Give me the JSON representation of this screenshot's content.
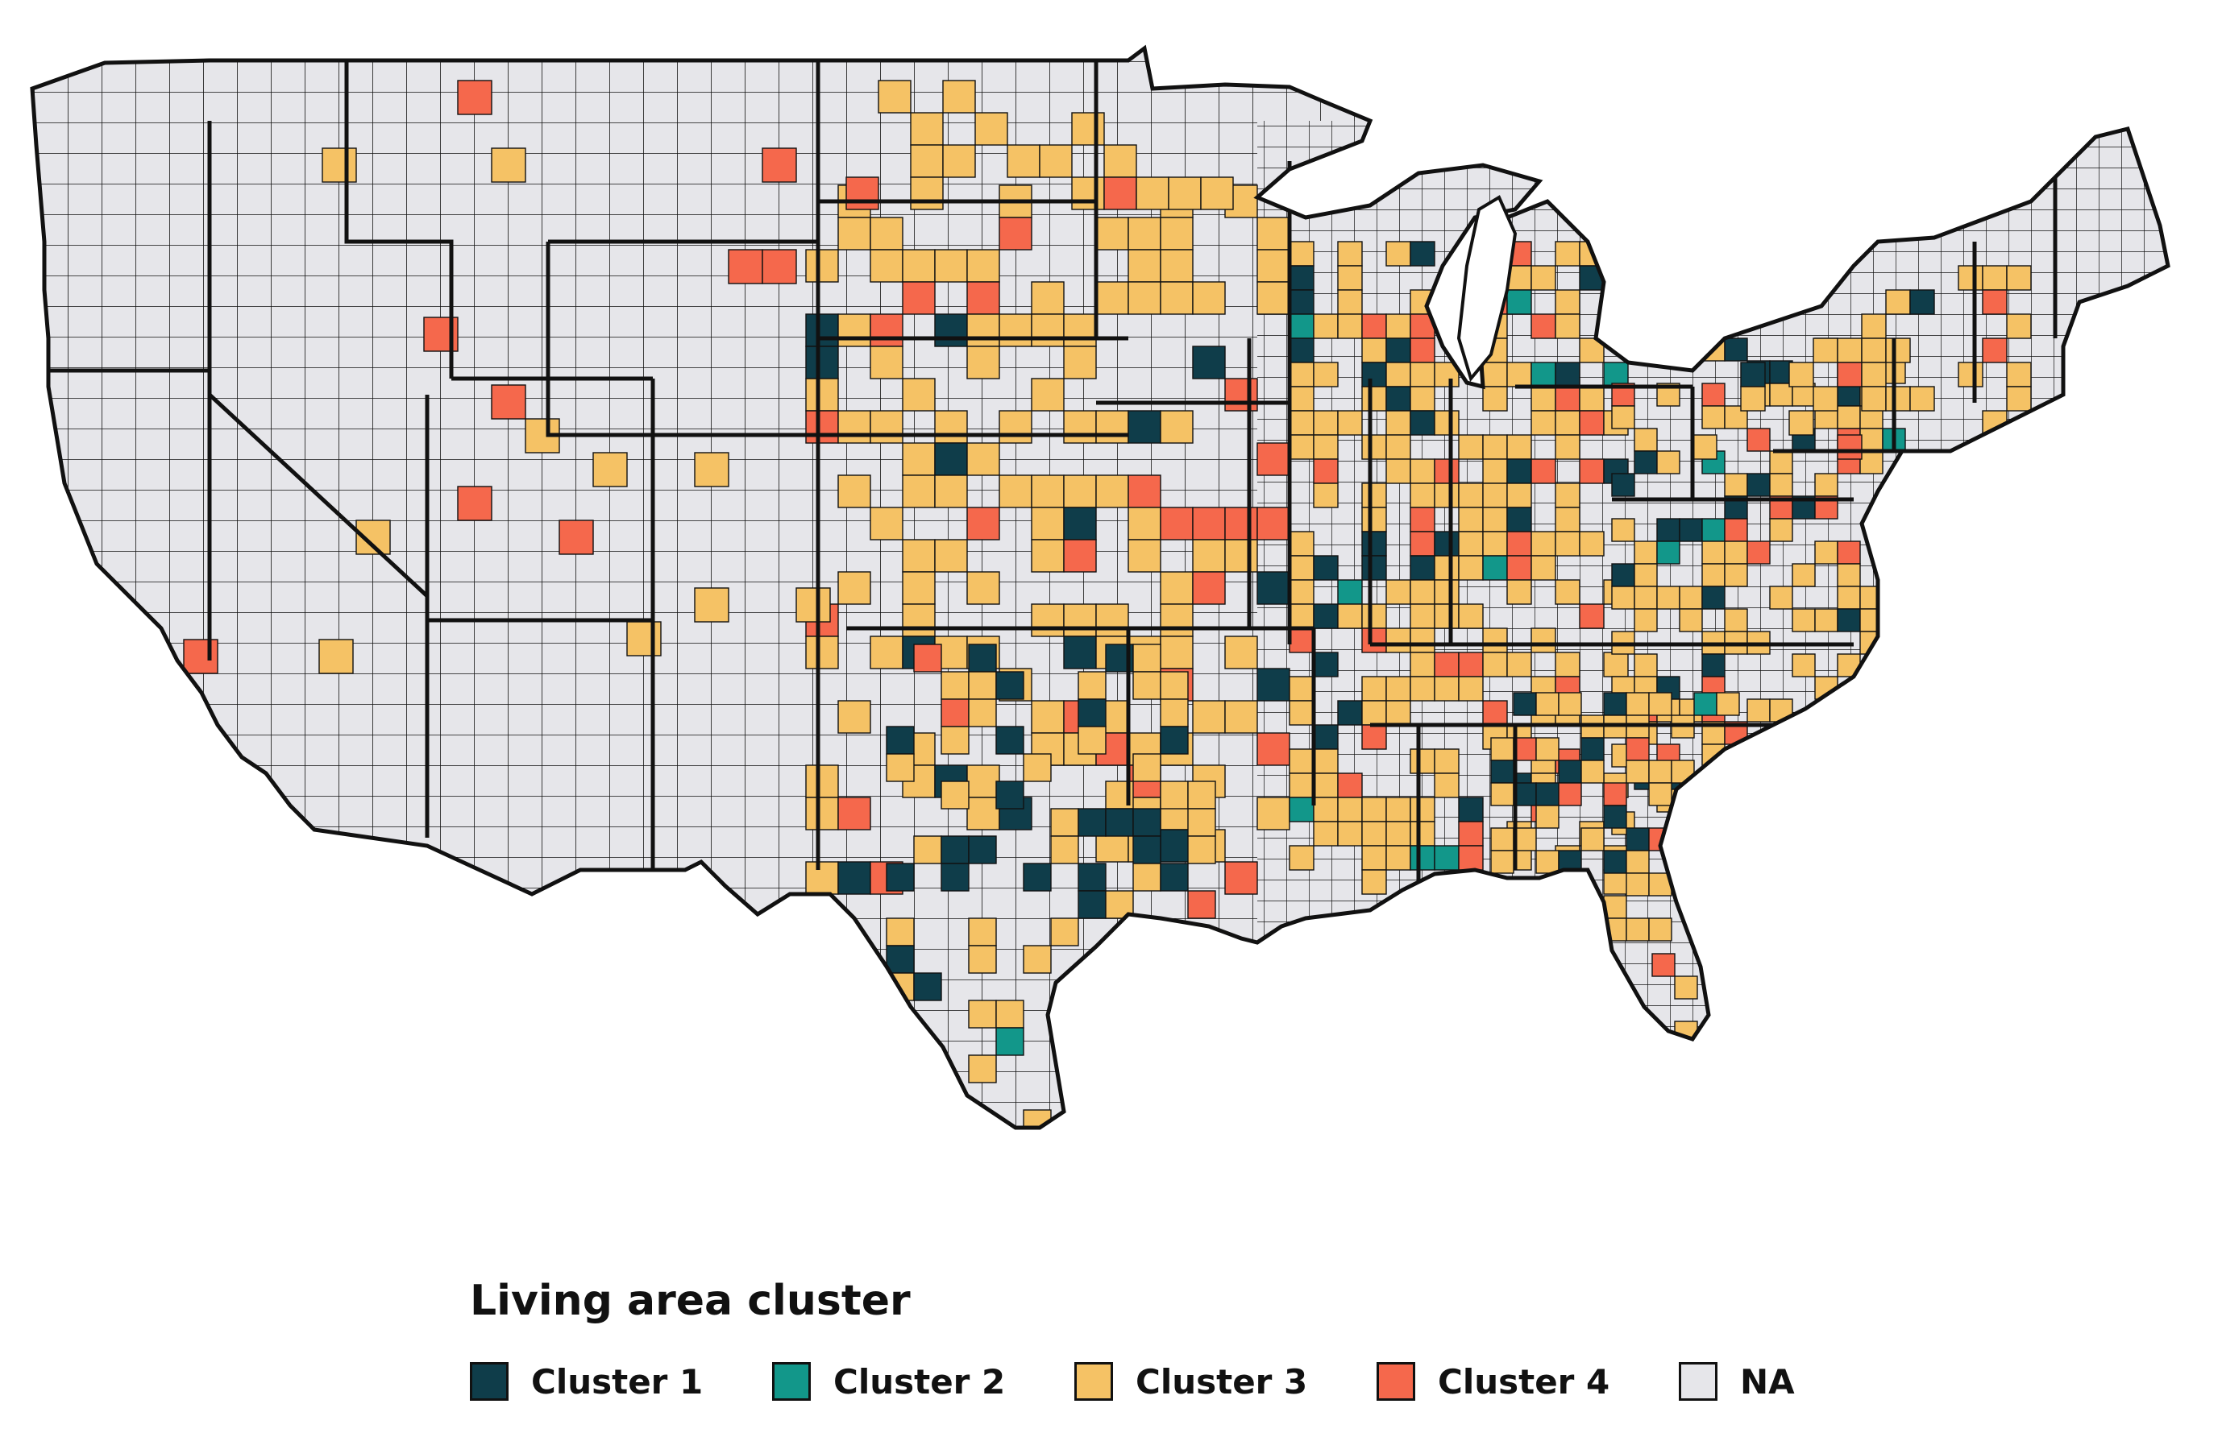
{
  "legend": {
    "title": "Living area cluster",
    "items": [
      {
        "key": "c1",
        "label": "Cluster 1",
        "color": "#0f3d4a"
      },
      {
        "key": "c2",
        "label": "Cluster 2",
        "color": "#12978a"
      },
      {
        "key": "c3",
        "label": "Cluster 3",
        "color": "#f5c265"
      },
      {
        "key": "c4",
        "label": "Cluster 4",
        "color": "#f5684c"
      },
      {
        "key": "na",
        "label": "NA",
        "color": "#e6e6ea"
      }
    ]
  },
  "map": {
    "subject": "Contiguous United States county choropleth",
    "border_color": "#111111",
    "background": "#ffffff"
  }
}
